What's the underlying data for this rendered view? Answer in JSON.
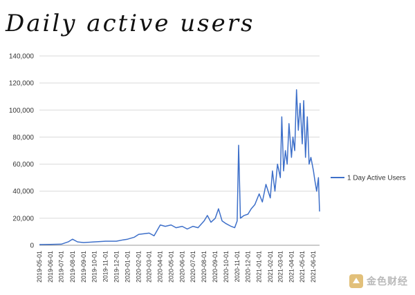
{
  "page": {
    "title": "Daily active users",
    "watermark": "金色财经"
  },
  "chart_data": {
    "type": "line",
    "title": "Daily active users",
    "xlabel": "",
    "ylabel": "",
    "ylim": [
      0,
      140000
    ],
    "yticks": [
      0,
      20000,
      40000,
      60000,
      80000,
      100000,
      120000,
      140000
    ],
    "ytick_labels": [
      "0",
      "20,000",
      "40,000",
      "60,000",
      "80,000",
      "100,000",
      "120,000",
      "140,000"
    ],
    "x_tick_labels": [
      "2019-05-01",
      "2019-06-01",
      "2019-07-01",
      "2019-08-01",
      "2019-09-01",
      "2019-10-01",
      "2019-11-01",
      "2019-12-01",
      "2020-01-01",
      "2020-02-01",
      "2020-03-01",
      "2020-04-01",
      "2020-05-01",
      "2020-06-01",
      "2020-07-01",
      "2020-08-01",
      "2020-09-01",
      "2020-10-01",
      "2020-11-01",
      "2020-12-01",
      "2021-01-01",
      "2021-02-01",
      "2021-03-01",
      "2021-04-01",
      "2021-05-01",
      "2021-06-01"
    ],
    "grid": true,
    "legend_position": "right",
    "series": [
      {
        "name": "1 Day Active Users",
        "color": "#3d6fc9",
        "x": [
          "2019-05-01",
          "2019-06-01",
          "2019-07-01",
          "2019-07-20",
          "2019-08-01",
          "2019-08-15",
          "2019-09-01",
          "2019-10-01",
          "2019-11-01",
          "2019-12-01",
          "2019-12-20",
          "2020-01-01",
          "2020-01-20",
          "2020-02-01",
          "2020-02-15",
          "2020-03-01",
          "2020-03-15",
          "2020-04-01",
          "2020-04-15",
          "2020-05-01",
          "2020-05-15",
          "2020-06-01",
          "2020-06-15",
          "2020-07-01",
          "2020-07-15",
          "2020-08-01",
          "2020-08-10",
          "2020-08-20",
          "2020-09-01",
          "2020-09-10",
          "2020-09-20",
          "2020-10-01",
          "2020-10-15",
          "2020-10-25",
          "2020-11-01",
          "2020-11-05",
          "2020-11-10",
          "2020-11-20",
          "2020-12-01",
          "2020-12-10",
          "2020-12-20",
          "2021-01-01",
          "2021-01-10",
          "2021-01-20",
          "2021-02-01",
          "2021-02-07",
          "2021-02-14",
          "2021-02-21",
          "2021-03-01",
          "2021-03-05",
          "2021-03-10",
          "2021-03-15",
          "2021-03-20",
          "2021-03-25",
          "2021-04-01",
          "2021-04-05",
          "2021-04-10",
          "2021-04-15",
          "2021-04-20",
          "2021-04-25",
          "2021-05-01",
          "2021-05-05",
          "2021-05-10",
          "2021-05-15",
          "2021-05-20",
          "2021-05-25",
          "2021-06-01",
          "2021-06-05",
          "2021-06-10",
          "2021-06-15",
          "2021-06-18"
        ],
        "y": [
          500,
          600,
          800,
          2500,
          4500,
          2500,
          2000,
          2500,
          3000,
          3000,
          4000,
          4500,
          6000,
          8000,
          8500,
          9000,
          7000,
          15000,
          14000,
          15000,
          13000,
          14000,
          12000,
          14000,
          13000,
          18000,
          22000,
          17000,
          20000,
          27000,
          18000,
          16000,
          14000,
          13000,
          18000,
          74000,
          20000,
          22000,
          23000,
          27000,
          30000,
          38000,
          32000,
          45000,
          35000,
          55000,
          40000,
          60000,
          50000,
          95000,
          55000,
          70000,
          60000,
          90000,
          65000,
          80000,
          70000,
          115000,
          85000,
          105000,
          75000,
          107000,
          65000,
          95000,
          60000,
          65000,
          55000,
          48000,
          40000,
          50000,
          25000
        ]
      }
    ]
  }
}
